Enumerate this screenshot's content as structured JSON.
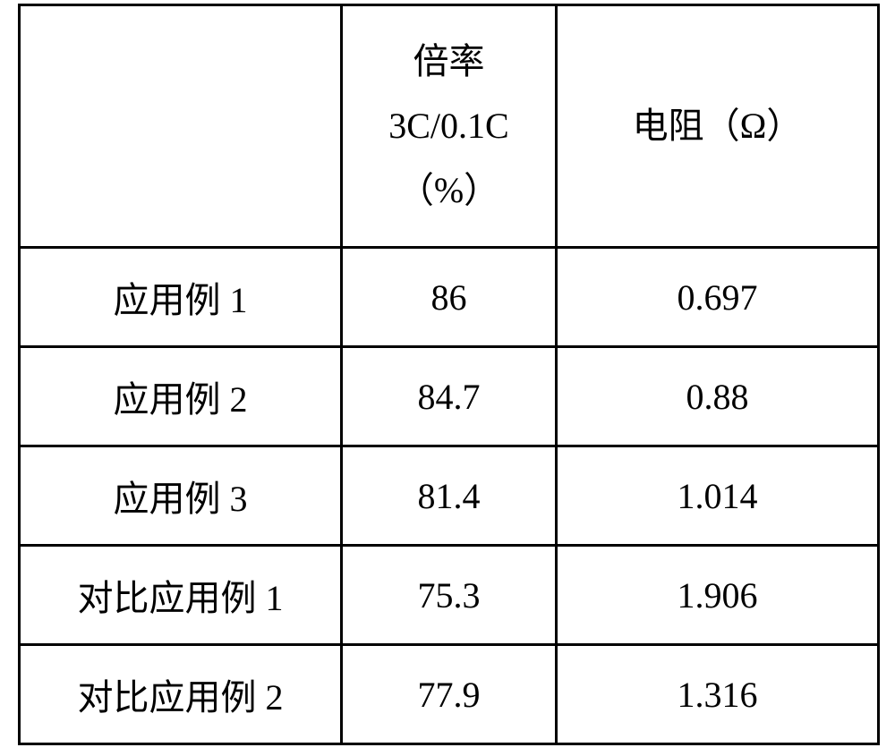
{
  "table": {
    "background_color": "#ffffff",
    "border_color": "#000000",
    "font_family": "SimSun",
    "font_size_pt": 30,
    "columns": {
      "label_col_header": "",
      "rate_header_line1": "倍率",
      "rate_header_line2": "3C/0.1C",
      "rate_header_line3": "（%）",
      "resistance_header": "电阻（Ω）"
    },
    "rows": [
      {
        "label": "应用例 1",
        "rate": "86",
        "resistance": "0.697"
      },
      {
        "label": "应用例 2",
        "rate": "84.7",
        "resistance": "0.88"
      },
      {
        "label": "应用例 3",
        "rate": "81.4",
        "resistance": "1.014"
      },
      {
        "label": "对比应用例 1",
        "rate": "75.3",
        "resistance": "1.906"
      },
      {
        "label": "对比应用例 2",
        "rate": "77.9",
        "resistance": "1.316"
      }
    ]
  }
}
